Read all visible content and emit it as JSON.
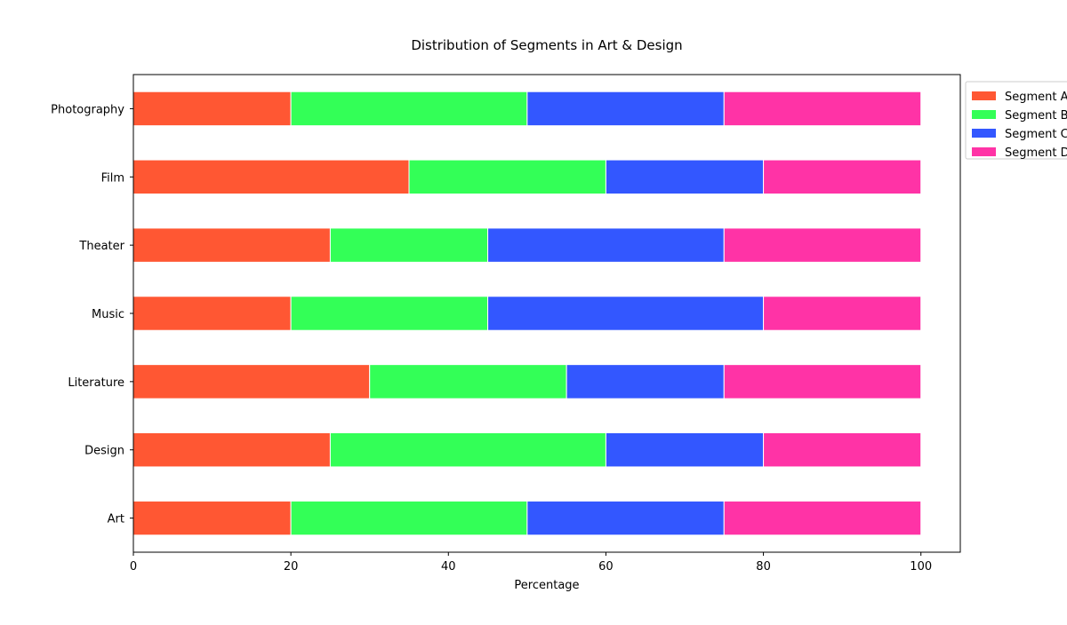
{
  "chart_data": {
    "type": "bar",
    "orientation": "horizontal",
    "stacked": true,
    "title": "Distribution of Segments in Art & Design",
    "xlabel": "Percentage",
    "ylabel": "",
    "categories": [
      "Art",
      "Design",
      "Literature",
      "Music",
      "Theater",
      "Film",
      "Photography"
    ],
    "series": [
      {
        "name": "Segment A",
        "color": "#ff5733",
        "values": [
          20,
          25,
          30,
          20,
          25,
          35,
          20
        ]
      },
      {
        "name": "Segment B",
        "color": "#33ff57",
        "values": [
          30,
          35,
          25,
          25,
          20,
          25,
          30
        ]
      },
      {
        "name": "Segment C",
        "color": "#3357ff",
        "values": [
          25,
          20,
          20,
          35,
          30,
          20,
          25
        ]
      },
      {
        "name": "Segment D",
        "color": "#ff33a6",
        "values": [
          25,
          20,
          25,
          20,
          25,
          20,
          25
        ]
      }
    ],
    "xlim": [
      0,
      105
    ],
    "xticks": [
      0,
      20,
      40,
      60,
      80,
      100
    ],
    "grid": false,
    "legend": {
      "placement": "outside-top-right"
    }
  }
}
